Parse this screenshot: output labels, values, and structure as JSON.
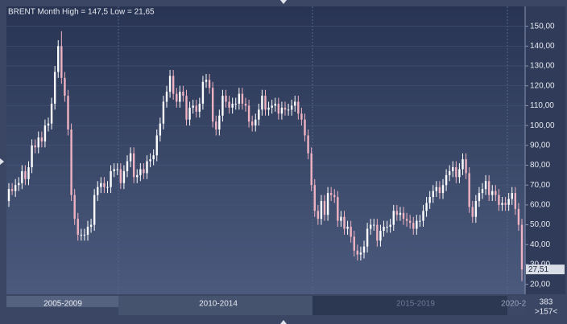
{
  "chart_data": {
    "type": "candlestick",
    "title": "BRENT Month High = 147,5 Low = 21,65",
    "open": [
      62,
      68,
      67,
      70,
      71,
      77,
      73,
      79,
      90,
      89,
      94,
      92,
      100,
      101,
      111,
      127,
      140,
      124,
      115,
      98,
      65,
      53,
      45,
      45,
      45,
      49,
      50,
      65,
      69,
      71,
      69,
      69,
      77,
      78,
      78,
      71,
      77,
      82,
      86,
      74,
      75,
      78,
      76,
      82,
      83,
      85,
      95,
      101,
      112,
      117,
      125,
      116,
      112,
      117,
      115,
      103,
      109,
      110,
      107,
      111,
      122,
      123,
      119,
      102,
      98,
      105,
      115,
      112,
      109,
      111,
      111,
      116,
      111,
      110,
      102,
      100,
      103,
      108,
      115,
      108,
      109,
      110,
      111,
      106,
      109,
      108,
      108,
      110,
      112,
      106,
      103,
      95,
      86,
      70,
      57,
      53,
      62,
      55,
      66,
      65,
      64,
      52,
      54,
      48,
      49,
      44,
      37,
      35,
      36,
      39,
      48,
      50,
      50,
      42,
      47,
      49,
      49,
      50,
      57,
      55,
      56,
      53,
      52,
      51,
      48,
      52,
      52,
      57,
      61,
      64,
      67,
      69,
      66,
      70,
      75,
      77,
      79,
      74,
      78,
      83,
      76,
      59,
      54,
      62,
      66,
      68,
      72,
      65,
      67,
      65,
      60,
      61,
      60,
      63,
      66,
      58,
      50
    ],
    "high": [
      71,
      71,
      73,
      74,
      80,
      80,
      82,
      93,
      93,
      97,
      97,
      103,
      104,
      114,
      130,
      143,
      147.5,
      127,
      118,
      101,
      68,
      56,
      48,
      48,
      52,
      53,
      68,
      72,
      74,
      74,
      72,
      80,
      81,
      81,
      81,
      80,
      85,
      89,
      89,
      78,
      81,
      81,
      85,
      86,
      88,
      98,
      104,
      115,
      120,
      128,
      128,
      119,
      120,
      120,
      118,
      112,
      113,
      113,
      114,
      125,
      126,
      126,
      122,
      105,
      108,
      118,
      118,
      115,
      114,
      114,
      119,
      119,
      114,
      113,
      105,
      106,
      111,
      118,
      118,
      112,
      113,
      114,
      114,
      112,
      112,
      111,
      113,
      115,
      115,
      109,
      106,
      98,
      89,
      73,
      60,
      65,
      65,
      69,
      69,
      68,
      67,
      57,
      57,
      52,
      52,
      47,
      40,
      39,
      42,
      51,
      53,
      53,
      53,
      50,
      52,
      52,
      53,
      60,
      60,
      59,
      59,
      56,
      55,
      54,
      55,
      55,
      60,
      64,
      67,
      70,
      72,
      72,
      73,
      78,
      80,
      82,
      82,
      81,
      86,
      86,
      79,
      62,
      65,
      69,
      71,
      75,
      75,
      70,
      70,
      68,
      64,
      64,
      66,
      69,
      69,
      61,
      53
    ],
    "low": [
      59,
      65,
      64,
      67,
      68,
      70,
      70,
      76,
      86,
      86,
      89,
      89,
      97,
      98,
      108,
      124,
      121,
      112,
      95,
      62,
      50,
      42,
      42,
      42,
      42,
      46,
      47,
      62,
      66,
      66,
      66,
      66,
      74,
      75,
      68,
      68,
      74,
      79,
      71,
      71,
      72,
      73,
      73,
      79,
      80,
      82,
      92,
      98,
      109,
      114,
      113,
      109,
      109,
      112,
      100,
      100,
      106,
      104,
      104,
      108,
      119,
      116,
      99,
      95,
      95,
      102,
      109,
      106,
      106,
      108,
      108,
      108,
      107,
      99,
      97,
      97,
      100,
      105,
      105,
      105,
      106,
      107,
      103,
      103,
      105,
      105,
      105,
      107,
      103,
      100,
      92,
      83,
      67,
      54,
      50,
      50,
      52,
      52,
      62,
      61,
      49,
      49,
      45,
      45,
      41,
      34,
      32,
      32,
      33,
      36,
      45,
      47,
      39,
      39,
      44,
      46,
      46,
      47,
      52,
      52,
      50,
      49,
      48,
      45,
      45,
      49,
      49,
      54,
      58,
      61,
      64,
      63,
      63,
      67,
      72,
      74,
      71,
      71,
      75,
      73,
      56,
      51,
      51,
      59,
      63,
      65,
      62,
      62,
      62,
      57,
      57,
      57,
      57,
      60,
      55,
      47,
      21.65
    ],
    "close": [
      68,
      67,
      70,
      71,
      77,
      73,
      79,
      90,
      89,
      94,
      92,
      100,
      101,
      111,
      127,
      140,
      124,
      115,
      98,
      65,
      53,
      45,
      45,
      45,
      49,
      50,
      65,
      69,
      71,
      69,
      69,
      77,
      78,
      78,
      71,
      77,
      82,
      86,
      74,
      75,
      78,
      76,
      82,
      83,
      85,
      95,
      101,
      112,
      117,
      125,
      116,
      112,
      117,
      115,
      103,
      109,
      110,
      107,
      111,
      122,
      123,
      119,
      102,
      98,
      105,
      115,
      112,
      109,
      111,
      111,
      116,
      111,
      110,
      102,
      100,
      103,
      108,
      115,
      108,
      109,
      110,
      111,
      106,
      109,
      108,
      108,
      110,
      112,
      106,
      103,
      95,
      86,
      70,
      57,
      53,
      62,
      55,
      66,
      65,
      64,
      52,
      54,
      48,
      49,
      44,
      37,
      35,
      36,
      39,
      48,
      50,
      50,
      42,
      47,
      49,
      49,
      50,
      57,
      55,
      56,
      53,
      52,
      51,
      48,
      52,
      52,
      57,
      61,
      64,
      67,
      69,
      66,
      70,
      75,
      77,
      79,
      74,
      78,
      83,
      76,
      59,
      54,
      62,
      66,
      68,
      72,
      65,
      67,
      65,
      60,
      61,
      60,
      63,
      66,
      58,
      50,
      27.51
    ],
    "last_price_label": "27,51",
    "ylim": [
      15,
      160
    ],
    "yticks": [
      {
        "value": 20,
        "label": "20,00"
      },
      {
        "value": 30,
        "label": "30,00"
      },
      {
        "value": 40,
        "label": "40,00"
      },
      {
        "value": 50,
        "label": "50,00"
      },
      {
        "value": 60,
        "label": "60,00"
      },
      {
        "value": 70,
        "label": "70,00"
      },
      {
        "value": 80,
        "label": "80,00"
      },
      {
        "value": 90,
        "label": "90,00"
      },
      {
        "value": 100,
        "label": "100,00"
      },
      {
        "value": 110,
        "label": "110,00"
      },
      {
        "value": 120,
        "label": "120,00"
      },
      {
        "value": 130,
        "label": "130,00"
      },
      {
        "value": 140,
        "label": "140,00"
      },
      {
        "value": 150,
        "label": "150,00"
      }
    ],
    "periods": [
      "2005-2009",
      "2010-2014",
      "2015-2019",
      "2020-2"
    ],
    "bar_count": 383,
    "visible_label": ">157<",
    "grid": true,
    "up_color": "#ffffff",
    "down_color": "#f0b3c2"
  }
}
